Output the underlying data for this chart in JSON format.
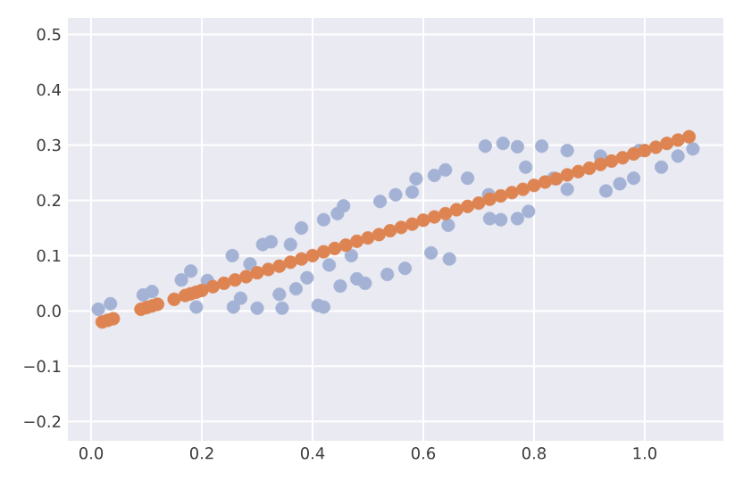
{
  "chart_data": {
    "type": "scatter",
    "grid": true,
    "xlim": [
      -0.042,
      1.142
    ],
    "ylim": [
      -0.235,
      0.53
    ],
    "xticks": [
      {
        "value": 0,
        "label": "0.0"
      },
      0.2,
      0.4,
      0.6,
      0.8,
      {
        "value": 1,
        "label": "1.0"
      }
    ],
    "yticks": [
      {
        "value": -0.2,
        "label": "−0.2"
      },
      {
        "value": -0.1,
        "label": "−0.1"
      },
      {
        "value": 0,
        "label": "0.0"
      },
      0.1,
      0.2,
      0.3,
      0.4,
      0.5
    ],
    "series": [
      {
        "color": "#a3b2d5",
        "x": [
          0.013,
          0.035,
          0.094,
          0.11,
          0.163,
          0.18,
          0.19,
          0.21,
          0.255,
          0.257,
          0.27,
          0.287,
          0.3,
          0.31,
          0.325,
          0.34,
          0.345,
          0.36,
          0.37,
          0.38,
          0.39,
          0.41,
          0.42,
          0.42,
          0.43,
          0.445,
          0.456,
          0.45,
          0.47,
          0.48,
          0.495,
          0.522,
          0.535,
          0.55,
          0.567,
          0.58,
          0.587,
          0.614,
          0.62,
          0.64,
          0.645,
          0.647,
          0.68,
          0.712,
          0.718,
          0.72,
          0.74,
          0.744,
          0.77,
          0.77,
          0.785,
          0.79,
          0.814,
          0.835,
          0.86,
          0.86,
          0.92,
          0.93,
          0.955,
          0.98,
          0.99,
          1.03,
          1.06,
          1.087
        ],
        "values": [
          0.003,
          0.013,
          0.029,
          0.035,
          0.056,
          0.072,
          0.007,
          0.055,
          0.1,
          0.007,
          0.023,
          0.085,
          0.005,
          0.12,
          0.125,
          0.03,
          0.005,
          0.12,
          0.04,
          0.15,
          0.06,
          0.01,
          0.165,
          0.007,
          0.083,
          0.176,
          0.19,
          0.045,
          0.1,
          0.058,
          0.05,
          0.198,
          0.066,
          0.21,
          0.077,
          0.215,
          0.239,
          0.105,
          0.245,
          0.255,
          0.155,
          0.094,
          0.24,
          0.298,
          0.21,
          0.167,
          0.165,
          0.303,
          0.297,
          0.167,
          0.26,
          0.18,
          0.298,
          0.24,
          0.29,
          0.22,
          0.28,
          0.217,
          0.23,
          0.24,
          0.29,
          0.26,
          0.28,
          0.293
        ]
      },
      {
        "color": "#dd8452",
        "x": [
          0.02,
          0.03,
          0.04,
          0.09,
          0.1,
          0.11,
          0.12,
          0.15,
          0.17,
          0.18,
          0.19,
          0.2,
          0.22,
          0.24,
          0.26,
          0.28,
          0.3,
          0.32,
          0.34,
          0.36,
          0.38,
          0.4,
          0.42,
          0.44,
          0.46,
          0.48,
          0.5,
          0.52,
          0.54,
          0.56,
          0.58,
          0.6,
          0.62,
          0.64,
          0.66,
          0.68,
          0.7,
          0.72,
          0.74,
          0.76,
          0.78,
          0.8,
          0.82,
          0.84,
          0.86,
          0.88,
          0.9,
          0.92,
          0.94,
          0.96,
          0.98,
          1.0,
          1.02,
          1.04,
          1.06,
          1.08
        ],
        "values": [
          -0.02,
          -0.017,
          -0.014,
          0.003,
          0.006,
          0.009,
          0.012,
          0.021,
          0.028,
          0.031,
          0.034,
          0.037,
          0.044,
          0.05,
          0.056,
          0.062,
          0.069,
          0.075,
          0.081,
          0.088,
          0.094,
          0.1,
          0.107,
          0.113,
          0.119,
          0.126,
          0.132,
          0.138,
          0.145,
          0.151,
          0.157,
          0.164,
          0.17,
          0.176,
          0.183,
          0.189,
          0.195,
          0.202,
          0.208,
          0.214,
          0.22,
          0.227,
          0.233,
          0.239,
          0.246,
          0.252,
          0.258,
          0.265,
          0.271,
          0.277,
          0.284,
          0.29,
          0.296,
          0.303,
          0.309,
          0.315
        ]
      }
    ]
  }
}
